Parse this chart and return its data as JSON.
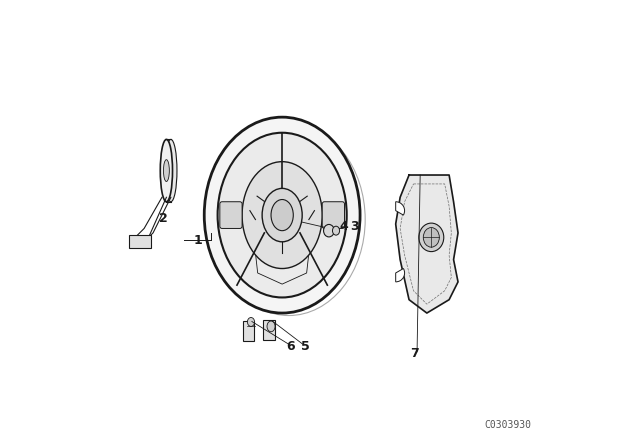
{
  "bg_color": "#ffffff",
  "line_color": "#1a1a1a",
  "part_number": "C0303930",
  "figsize": [
    6.4,
    4.48
  ],
  "dpi": 100
}
